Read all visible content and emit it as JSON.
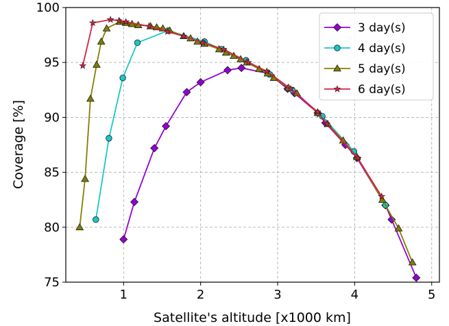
{
  "chart_data": {
    "type": "line",
    "xlabel": "Satellite's altitude [x1000 km]",
    "ylabel": "Coverage [%]",
    "xlim": [
      0.25,
      5.1
    ],
    "ylim": [
      75,
      100
    ],
    "xticks": [
      1,
      2,
      3,
      4,
      5
    ],
    "yticks": [
      75,
      80,
      85,
      90,
      95,
      100
    ],
    "grid": true,
    "legend_position": "top-right",
    "series": [
      {
        "name": "3 day(s)",
        "color": "#9400d3",
        "marker": "diamond",
        "x": [
          1.0,
          1.14,
          1.4,
          1.55,
          1.82,
          2.0,
          2.35,
          2.53,
          2.88,
          3.13,
          3.22,
          3.52,
          3.62,
          3.88,
          4.03,
          4.4,
          4.48,
          4.8
        ],
        "y": [
          78.9,
          82.3,
          87.2,
          89.2,
          92.3,
          93.2,
          94.3,
          94.5,
          94.0,
          92.6,
          92.2,
          90.4,
          89.5,
          87.5,
          86.3,
          82.0,
          80.7,
          75.4
        ]
      },
      {
        "name": "4 day(s)",
        "color": "#17c8c8",
        "marker": "circle",
        "x": [
          0.64,
          0.81,
          0.99,
          1.18,
          1.58,
          2.05,
          2.27,
          2.59,
          2.9,
          3.19,
          3.58,
          3.99,
          4.4
        ],
        "y": [
          80.7,
          88.1,
          93.6,
          96.8,
          97.9,
          96.9,
          96.2,
          95.2,
          93.9,
          92.5,
          90.1,
          86.9,
          82.0
        ]
      },
      {
        "name": "5 day(s)",
        "color": "#808000",
        "marker": "triangle",
        "x": [
          0.43,
          0.5,
          0.57,
          0.65,
          0.71,
          0.78,
          0.95,
          1.03,
          1.11,
          1.19,
          1.35,
          1.43,
          1.51,
          1.6,
          1.78,
          1.87,
          1.96,
          2.05,
          2.24,
          2.33,
          2.43,
          2.52,
          2.6,
          2.76,
          2.87,
          2.95,
          3.14,
          3.25,
          3.52,
          3.65,
          3.85,
          4.03,
          4.36,
          4.57,
          4.75
        ],
        "y": [
          80.0,
          84.4,
          91.7,
          94.8,
          96.9,
          98.1,
          98.7,
          98.6,
          98.5,
          98.4,
          98.3,
          98.2,
          98.1,
          97.9,
          97.4,
          97.2,
          96.9,
          96.7,
          96.2,
          95.9,
          95.6,
          95.3,
          95.0,
          94.4,
          94.0,
          93.6,
          92.7,
          92.2,
          90.4,
          89.4,
          87.9,
          86.4,
          82.5,
          79.9,
          76.8
        ]
      },
      {
        "name": "6 day(s)",
        "color": "#d62040",
        "marker": "star",
        "x": [
          0.47,
          0.6,
          0.83,
          0.94,
          1.03,
          1.33,
          1.57,
          1.78,
          2.03,
          2.3,
          2.62,
          2.86,
          3.17,
          3.52,
          3.64,
          4.04,
          4.35
        ],
        "y": [
          94.7,
          98.6,
          98.9,
          98.8,
          98.7,
          98.3,
          97.8,
          97.4,
          96.8,
          96.2,
          95.0,
          94.2,
          92.6,
          90.5,
          89.4,
          86.3,
          82.8
        ]
      }
    ]
  }
}
